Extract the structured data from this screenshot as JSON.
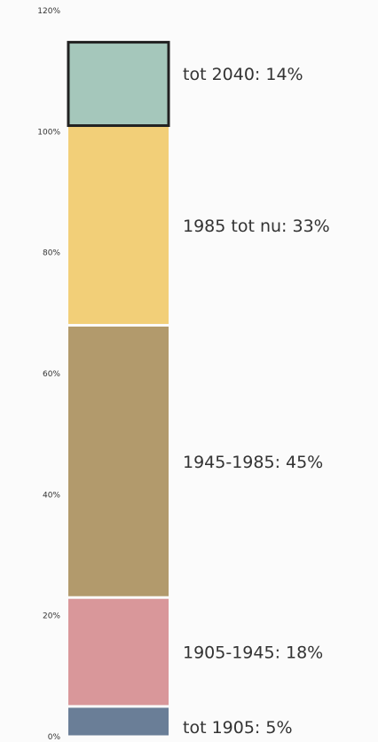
{
  "chart_data": {
    "type": "bar",
    "stacked": true,
    "title": "",
    "xlabel": "",
    "ylabel": "",
    "ylim": [
      0,
      120
    ],
    "yticks": [
      {
        "value": 0,
        "label": "0%"
      },
      {
        "value": 20,
        "label": "20%"
      },
      {
        "value": 40,
        "label": "40%"
      },
      {
        "value": 60,
        "label": "60%"
      },
      {
        "value": 80,
        "label": "80%"
      },
      {
        "value": 100,
        "label": "100%"
      },
      {
        "value": 120,
        "label": "120%"
      }
    ],
    "grid": false,
    "segments": [
      {
        "category": "tot 1905",
        "value": 5,
        "label": "tot 1905: 5%",
        "color": "#6a7e97"
      },
      {
        "category": "1905-1945",
        "value": 18,
        "label": "1905-1945: 18%",
        "color": "#d9979a"
      },
      {
        "category": "1945-1985",
        "value": 45,
        "label": "1945-1985: 45%",
        "color": "#b29a6c"
      },
      {
        "category": "1985 tot nu",
        "value": 33,
        "label": "1985 tot nu: 33%",
        "color": "#f2cf78"
      },
      {
        "category": "tot 2040",
        "value": 14,
        "label": "tot 2040: 14%",
        "color": "#a5c7bb",
        "outlined": true
      }
    ]
  }
}
